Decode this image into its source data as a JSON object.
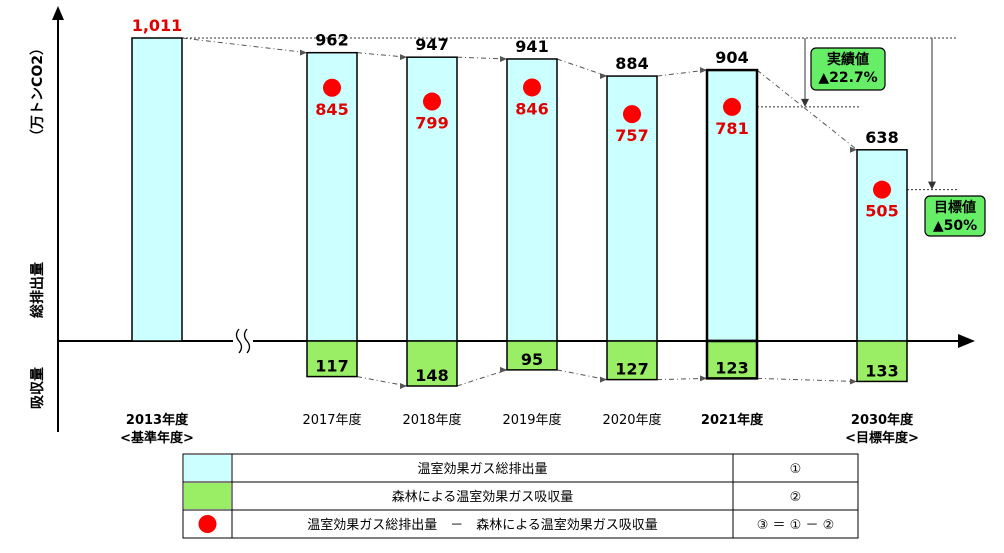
{
  "chart_data": {
    "type": "bar",
    "y_axis_label_unit": "（万トンCO2）",
    "y_axis_label_emission": "総排出量",
    "y_axis_label_absorption": "吸収量",
    "categories": [
      {
        "line1": "2013年度",
        "line2": "<基準年度>",
        "bold": true
      },
      {
        "line1": "2017年度",
        "line2": "",
        "bold": false
      },
      {
        "line1": "2018年度",
        "line2": "",
        "bold": false
      },
      {
        "line1": "2019年度",
        "line2": "",
        "bold": false
      },
      {
        "line1": "2020年度",
        "line2": "",
        "bold": false
      },
      {
        "line1": "2021年度",
        "line2": "",
        "bold": true
      },
      {
        "line1": "2030年度",
        "line2": "<目標年度>",
        "bold": true
      }
    ],
    "series": [
      {
        "name": "温室効果ガス総排出量",
        "values": [
          1011,
          962,
          947,
          941,
          884,
          904,
          638
        ],
        "labels": [
          "1,011",
          "962",
          "947",
          "941",
          "884",
          "904",
          "638"
        ]
      },
      {
        "name": "森林による温室効果ガス吸収量",
        "values": [
          null,
          117,
          148,
          95,
          127,
          123,
          133
        ],
        "labels": [
          "",
          "117",
          "148",
          "95",
          "127",
          "123",
          "133"
        ]
      },
      {
        "name": "温室効果ガス総排出量　－　森林による温室効果ガス吸収量",
        "values": [
          null,
          845,
          799,
          846,
          757,
          781,
          505
        ],
        "labels": [
          "",
          "845",
          "799",
          "846",
          "757",
          "781",
          "505"
        ]
      }
    ],
    "callouts": [
      {
        "line1": "実績値",
        "line2": "▲22.7%"
      },
      {
        "line1": "目標値",
        "line2": "▲50%"
      }
    ],
    "colors": {
      "emission_fill": "#ccffff",
      "absorption_fill": "#99ee66",
      "net_marker": "#ff0000",
      "highlight_value": "#e00000",
      "callout_fill": "#66ee66"
    }
  },
  "legend": [
    {
      "swatch": "emission",
      "label": "温室効果ガス総排出量",
      "key": "①"
    },
    {
      "swatch": "absorption",
      "label": "森林による温室効果ガス吸収量",
      "key": "②"
    },
    {
      "swatch": "dot",
      "label": "温室効果ガス総排出量　－　森林による温室効果ガス吸収量",
      "key": "③ ＝ ① － ②"
    }
  ]
}
